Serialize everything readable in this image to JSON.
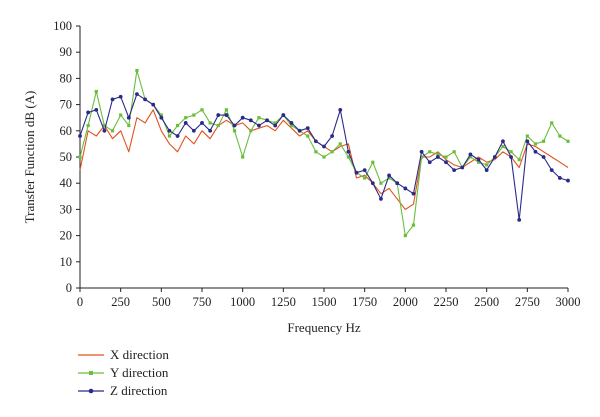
{
  "chart_data": {
    "type": "line",
    "xlabel": "Frequency Hz",
    "ylabel": "Transfer Function dB (A)",
    "xlim": [
      0,
      3000
    ],
    "ylim": [
      0,
      100
    ],
    "xticks": [
      0,
      250,
      500,
      750,
      1000,
      1250,
      1500,
      1750,
      2000,
      2250,
      2500,
      2750,
      3000
    ],
    "yticks": [
      0,
      10,
      20,
      30,
      40,
      50,
      60,
      70,
      80,
      90,
      100
    ],
    "grid": false,
    "legend_position": "bottom-left",
    "x": [
      0,
      50,
      100,
      150,
      200,
      250,
      300,
      350,
      400,
      450,
      500,
      550,
      600,
      650,
      700,
      750,
      800,
      850,
      900,
      950,
      1000,
      1050,
      1100,
      1150,
      1200,
      1250,
      1300,
      1350,
      1400,
      1450,
      1500,
      1550,
      1600,
      1650,
      1700,
      1750,
      1800,
      1850,
      1900,
      1950,
      2000,
      2050,
      2100,
      2150,
      2200,
      2250,
      2300,
      2350,
      2400,
      2450,
      2500,
      2550,
      2600,
      2650,
      2700,
      2750,
      2800,
      2850,
      2900,
      2950,
      3000
    ],
    "series": [
      {
        "name": "X direction",
        "color": "#e0531f",
        "marker": "none",
        "values": [
          45,
          60,
          58,
          62,
          57,
          60,
          52,
          65,
          63,
          68,
          60,
          55,
          52,
          58,
          55,
          60,
          57,
          62,
          64,
          62,
          63,
          60,
          61,
          62,
          60,
          64,
          61,
          58,
          60,
          56,
          54,
          52,
          54,
          55,
          42,
          43,
          40,
          36,
          38,
          34,
          30,
          32,
          50,
          50,
          52,
          49,
          47,
          46,
          48,
          50,
          48,
          49,
          52,
          50,
          46,
          55,
          54,
          52,
          50,
          48,
          46
        ]
      },
      {
        "name": "Y direction",
        "color": "#6cbd3c",
        "marker": "square",
        "values": [
          50,
          62,
          75,
          62,
          60,
          66,
          62,
          83,
          72,
          70,
          66,
          58,
          62,
          65,
          66,
          68,
          63,
          62,
          68,
          60,
          50,
          60,
          65,
          64,
          63,
          66,
          62,
          60,
          58,
          52,
          50,
          52,
          55,
          50,
          44,
          42,
          48,
          40,
          42,
          40,
          20,
          24,
          50,
          52,
          51,
          50,
          52,
          46,
          50,
          48,
          47,
          50,
          54,
          52,
          49,
          58,
          55,
          56,
          63,
          58,
          56
        ]
      },
      {
        "name": "Z direction",
        "color": "#2b2a8a",
        "marker": "circle",
        "values": [
          58,
          67,
          68,
          60,
          72,
          73,
          65,
          74,
          72,
          70,
          65,
          60,
          58,
          63,
          60,
          63,
          60,
          66,
          66,
          62,
          65,
          64,
          62,
          64,
          62,
          66,
          63,
          60,
          61,
          56,
          54,
          58,
          68,
          52,
          44,
          45,
          40,
          34,
          43,
          40,
          38,
          36,
          52,
          48,
          50,
          48,
          45,
          46,
          51,
          49,
          45,
          50,
          56,
          50,
          26,
          56,
          52,
          50,
          45,
          42,
          41
        ]
      }
    ]
  }
}
